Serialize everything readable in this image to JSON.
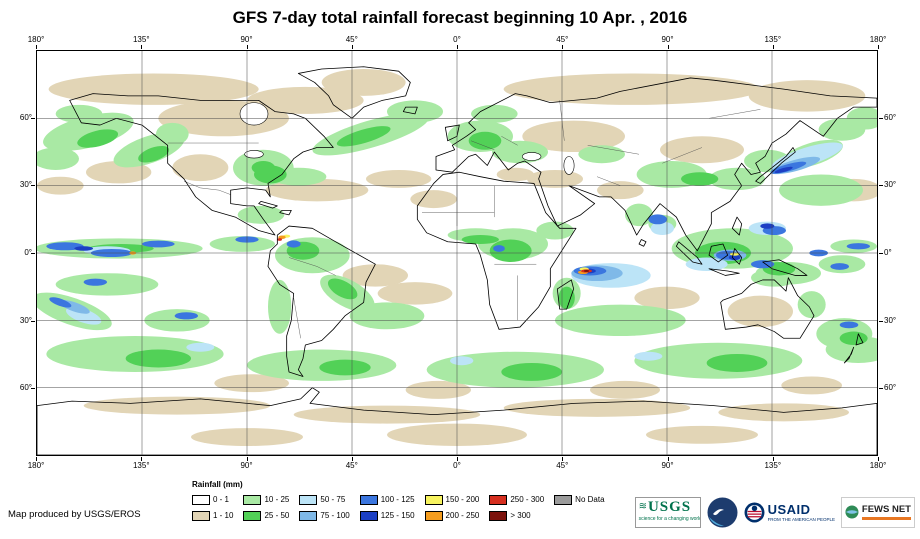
{
  "title": "GFS 7-day total rainfall forecast beginning 10 Apr. , 2016",
  "axes": {
    "lon_labels": [
      "180°",
      "135°",
      "90°",
      "45°",
      "0°",
      "45°",
      "90°",
      "135°",
      "180°"
    ],
    "lat_labels": [
      "60°",
      "30°",
      "0°",
      "30°",
      "60°"
    ]
  },
  "legend": {
    "title": "Rainfall (mm)",
    "items": [
      {
        "label": "0 - 1",
        "color": "#FFFFFF"
      },
      {
        "label": "1 - 10",
        "color": "#E2D5B6"
      },
      {
        "label": "10 - 25",
        "color": "#A9E9A4"
      },
      {
        "label": "25 - 50",
        "color": "#52D157"
      },
      {
        "label": "50 - 75",
        "color": "#BCE4F7"
      },
      {
        "label": "75 - 100",
        "color": "#7FB9E8"
      },
      {
        "label": "100 - 125",
        "color": "#3B76DF"
      },
      {
        "label": "125 - 150",
        "color": "#1C3FC4"
      },
      {
        "label": "150 - 200",
        "color": "#F7F35F"
      },
      {
        "label": "200 - 250",
        "color": "#F59D1E"
      },
      {
        "label": "250 - 300",
        "color": "#D62F1F"
      },
      {
        "label": "> 300",
        "color": "#7C120C"
      },
      {
        "label": "No Data",
        "color": "#9B9B9B"
      }
    ]
  },
  "footer": {
    "attribution": "Map produced by USGS/EROS"
  },
  "logos": {
    "usgs": {
      "name": "USGS",
      "tagline": "science for a changing world",
      "color": "#00724C"
    },
    "noaa": {
      "name": "NOAA",
      "color": "#1D3C6E"
    },
    "usaid": {
      "name": "USAID",
      "tagline": "FROM THE AMERICAN PEOPLE",
      "color": "#002F6C"
    },
    "fewsnet": {
      "name": "FEWS NET",
      "color": "#E87722"
    }
  }
}
